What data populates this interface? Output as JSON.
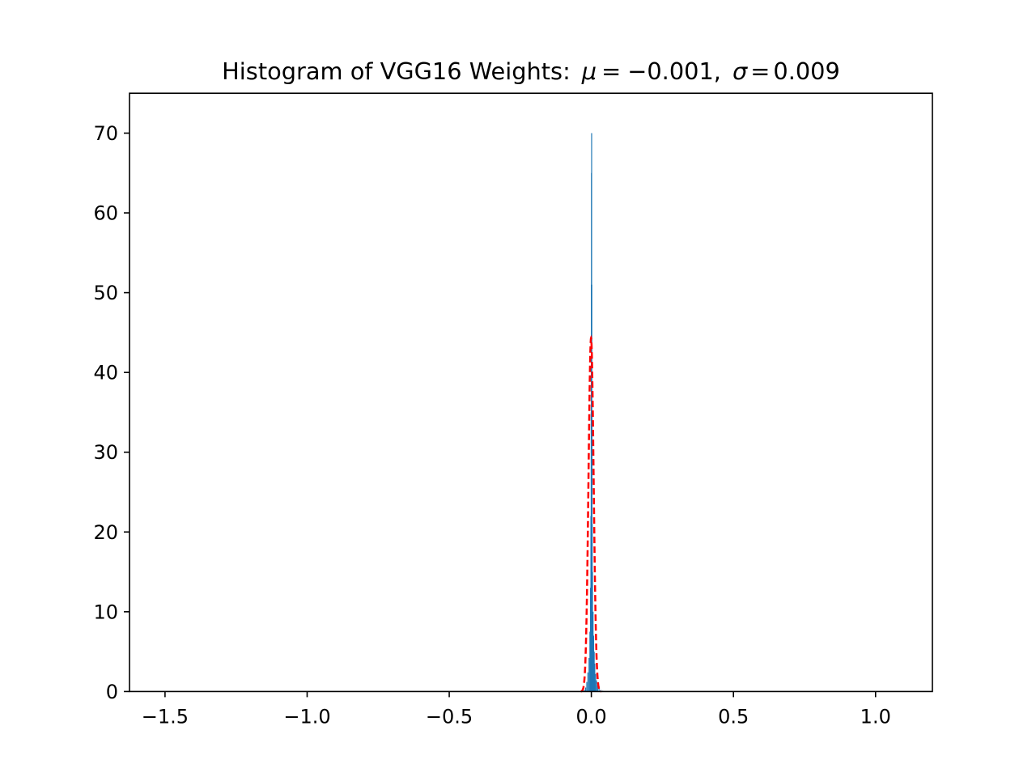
{
  "chart_data": {
    "type": "bar",
    "title": "Histogram of VGG16 Weights: μ = −0.001, σ = 0.009",
    "title_parts": {
      "prefix": "Histogram of VGG16 Weights",
      "colon": ":",
      "mu_symbol": "μ",
      "eq": "=",
      "mu_value": "−0.001,",
      "sigma_symbol": "σ",
      "sigma_value": "0.009"
    },
    "xlabel": "",
    "ylabel": "",
    "xlim": [
      -1.625,
      1.2
    ],
    "ylim": [
      0,
      75
    ],
    "xticks": [
      {
        "value": -1.5,
        "label": "−1.5"
      },
      {
        "value": -1.0,
        "label": "−1.0"
      },
      {
        "value": -0.5,
        "label": "−0.5"
      },
      {
        "value": 0.0,
        "label": "0.0"
      },
      {
        "value": 0.5,
        "label": "0.5"
      },
      {
        "value": 1.0,
        "label": "1.0"
      }
    ],
    "yticks": [
      {
        "value": 0,
        "label": "0"
      },
      {
        "value": 10,
        "label": "10"
      },
      {
        "value": 20,
        "label": "20"
      },
      {
        "value": 30,
        "label": "30"
      },
      {
        "value": 40,
        "label": "40"
      },
      {
        "value": 50,
        "label": "50"
      },
      {
        "value": 60,
        "label": "60"
      },
      {
        "value": 70,
        "label": "70"
      }
    ],
    "bins": [
      {
        "x": -0.024,
        "y": 0.2
      },
      {
        "x": -0.02,
        "y": 0.5
      },
      {
        "x": -0.016,
        "y": 1.2
      },
      {
        "x": -0.012,
        "y": 2.4
      },
      {
        "x": -0.008,
        "y": 4.2
      },
      {
        "x": -0.005,
        "y": 7.5
      },
      {
        "x": -0.003,
        "y": 13
      },
      {
        "x": -0.0015,
        "y": 22
      },
      {
        "x": -0.0005,
        "y": 35
      },
      {
        "x": 0.0,
        "y": 51
      },
      {
        "x": 0.0005,
        "y": 65
      },
      {
        "x": 0.001,
        "y": 70
      },
      {
        "x": 0.0015,
        "y": 51
      },
      {
        "x": 0.002,
        "y": 35
      },
      {
        "x": 0.003,
        "y": 21
      },
      {
        "x": 0.004,
        "y": 15
      },
      {
        "x": 0.006,
        "y": 10
      },
      {
        "x": 0.008,
        "y": 7
      },
      {
        "x": 0.01,
        "y": 5
      },
      {
        "x": 0.012,
        "y": 3.5
      },
      {
        "x": 0.015,
        "y": 2.2
      },
      {
        "x": 0.018,
        "y": 1.4
      },
      {
        "x": 0.022,
        "y": 0.8
      },
      {
        "x": 0.027,
        "y": 0.4
      },
      {
        "x": 0.033,
        "y": 0.2
      },
      {
        "x": 0.04,
        "y": 0.1
      }
    ],
    "bin_width": 0.0025,
    "fit": {
      "type": "normal-pdf",
      "mu": -0.001,
      "sigma": 0.009,
      "style": "dashed"
    },
    "colors": {
      "bars": "#1f77b4",
      "fit_line": "#ff0000",
      "axes": "#000000"
    }
  }
}
